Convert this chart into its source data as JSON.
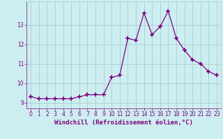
{
  "x": [
    0,
    1,
    2,
    3,
    4,
    5,
    6,
    7,
    8,
    9,
    10,
    11,
    12,
    13,
    14,
    15,
    16,
    17,
    18,
    19,
    20,
    21,
    22,
    23
  ],
  "y": [
    9.3,
    9.2,
    9.2,
    9.2,
    9.2,
    9.2,
    9.3,
    9.4,
    9.4,
    9.4,
    10.3,
    10.4,
    12.3,
    12.2,
    13.6,
    12.5,
    12.9,
    13.7,
    12.3,
    11.7,
    11.2,
    11.0,
    10.6,
    10.4
  ],
  "line_color": "#800080",
  "marker": "+",
  "marker_size": 4,
  "marker_lw": 1.2,
  "xlabel": "Windchill (Refroidissement éolien,°C)",
  "xlabel_fontsize": 6.5,
  "background_color": "#cceef0",
  "grid_color": "#aacdd0",
  "tick_color": "#800080",
  "label_color": "#800080",
  "ylim": [
    8.7,
    14.2
  ],
  "xlim": [
    -0.5,
    23.5
  ],
  "yticks": [
    9,
    10,
    11,
    12,
    13
  ],
  "xticks": [
    0,
    1,
    2,
    3,
    4,
    5,
    6,
    7,
    8,
    9,
    10,
    11,
    12,
    13,
    14,
    15,
    16,
    17,
    18,
    19,
    20,
    21,
    22,
    23
  ],
  "tick_fontsize": 5.5,
  "line_width": 0.9
}
